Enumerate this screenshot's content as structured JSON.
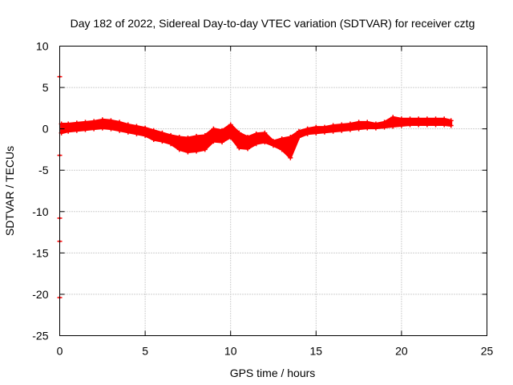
{
  "chart_data": {
    "type": "scatter",
    "title": "Day 182 of 2022, Sidereal Day-to-day VTEC variation (SDTVAR) for receiver cztg",
    "xlabel": "GPS time / hours",
    "ylabel": "SDTVAR / TECUs",
    "xlim": [
      0,
      25
    ],
    "ylim": [
      -25,
      10
    ],
    "xticks": [
      0,
      5,
      10,
      15,
      20,
      25
    ],
    "yticks": [
      10,
      5,
      0,
      -5,
      -10,
      -15,
      -20,
      -25
    ],
    "grid": true,
    "series_color": "#ff0000",
    "series": [
      {
        "name": "SDTVAR",
        "marker": "plus",
        "points": [
          [
            0.0,
            6.3
          ],
          [
            0.0,
            -3.2
          ],
          [
            0.0,
            -10.8
          ],
          [
            0.0,
            -13.6
          ],
          [
            0.0,
            -20.4
          ]
        ],
        "band": {
          "x": [
            0.1,
            0.5,
            1.0,
            1.5,
            2.0,
            2.5,
            3.0,
            3.5,
            4.0,
            4.5,
            5.0,
            5.5,
            6.0,
            6.5,
            7.0,
            7.5,
            8.0,
            8.5,
            9.0,
            9.5,
            10.0,
            10.5,
            11.0,
            11.5,
            12.0,
            12.5,
            13.0,
            13.5,
            14.0,
            14.5,
            15.0,
            15.5,
            16.0,
            16.5,
            17.0,
            17.5,
            18.0,
            18.5,
            19.0,
            19.5,
            20.0,
            20.5,
            21.0,
            21.5,
            22.0,
            22.5,
            22.9
          ],
          "upper": [
            0.6,
            0.6,
            0.7,
            0.8,
            0.9,
            1.1,
            1.0,
            0.8,
            0.5,
            0.3,
            0.1,
            -0.2,
            -0.5,
            -0.8,
            -1.0,
            -1.1,
            -0.9,
            -0.8,
            0.0,
            -0.2,
            0.5,
            -0.5,
            -1.0,
            -0.6,
            -0.5,
            -1.5,
            -1.2,
            -1.0,
            -0.3,
            0.0,
            0.2,
            0.2,
            0.4,
            0.5,
            0.6,
            0.8,
            0.8,
            0.6,
            0.8,
            1.4,
            1.2,
            1.2,
            1.2,
            1.2,
            1.2,
            1.2,
            1.0
          ],
          "lower": [
            -0.5,
            -0.3,
            -0.2,
            -0.1,
            0.0,
            0.1,
            0.0,
            -0.2,
            -0.4,
            -0.6,
            -0.8,
            -1.3,
            -1.5,
            -1.8,
            -2.5,
            -2.8,
            -2.7,
            -2.5,
            -1.5,
            -1.6,
            -1.0,
            -2.3,
            -2.4,
            -1.8,
            -1.6,
            -2.0,
            -2.5,
            -3.5,
            -1.0,
            -0.6,
            -0.5,
            -0.4,
            -0.3,
            -0.2,
            -0.1,
            0.0,
            0.1,
            0.1,
            0.2,
            0.3,
            0.4,
            0.5,
            0.5,
            0.5,
            0.5,
            0.5,
            0.4
          ]
        }
      }
    ]
  }
}
